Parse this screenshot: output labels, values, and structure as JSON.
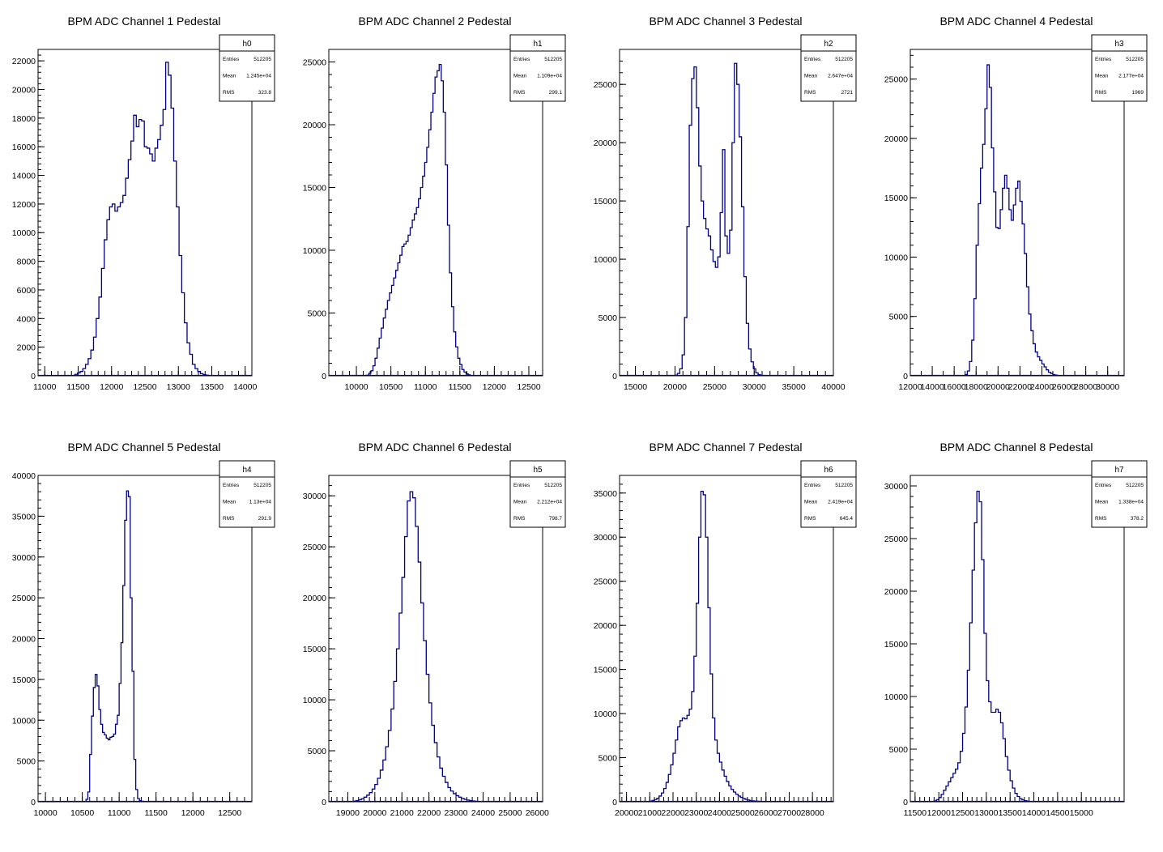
{
  "chart_data": [
    {
      "type": "histogram",
      "title": "BPM ADC Channel 1 Pedestal",
      "stats": {
        "name": "h0",
        "entries": "512205",
        "mean": "1.245e+04",
        "rms": "323.8"
      },
      "xlim": [
        10900,
        14100
      ],
      "ylim": [
        0,
        22800
      ],
      "xticks": [
        11000,
        11500,
        12000,
        12500,
        13000,
        13500,
        14000
      ],
      "xminor": 100,
      "yticks": [
        0,
        2000,
        4000,
        6000,
        8000,
        10000,
        12000,
        14000,
        16000,
        18000,
        20000,
        22000
      ],
      "yminor": 400,
      "x0": 11450,
      "bin_width": 40,
      "values": [
        100,
        200,
        300,
        500,
        800,
        1200,
        1800,
        2700,
        4000,
        5500,
        7500,
        9500,
        10900,
        11800,
        12000,
        11500,
        11800,
        12100,
        12600,
        13800,
        15100,
        16400,
        18200,
        17400,
        17900,
        17800,
        16000,
        15900,
        15500,
        15000,
        15900,
        16500,
        17500,
        18600,
        21900,
        21000,
        18700,
        15000,
        11800,
        8400,
        5800,
        3700,
        2300,
        1500,
        800,
        500,
        300,
        150,
        80,
        40
      ]
    },
    {
      "type": "histogram",
      "title": "BPM ADC Channel 2 Pedestal",
      "stats": {
        "name": "h1",
        "entries": "512205",
        "mean": "1.109e+04",
        "rms": "299.1"
      },
      "xlim": [
        9600,
        12700
      ],
      "ylim": [
        0,
        26000
      ],
      "xticks": [
        10000,
        10500,
        11000,
        11500,
        12000,
        12500
      ],
      "xminor": 100,
      "yticks": [
        0,
        5000,
        10000,
        15000,
        20000,
        25000
      ],
      "yminor": 1000,
      "x0": 10150,
      "bin_width": 30,
      "values": [
        50,
        200,
        400,
        800,
        1400,
        2200,
        3000,
        3800,
        4600,
        5300,
        6000,
        6600,
        7200,
        7800,
        8400,
        9000,
        9600,
        10300,
        10500,
        10700,
        11200,
        11800,
        12400,
        12900,
        13400,
        14100,
        15000,
        15900,
        17000,
        18200,
        19600,
        21000,
        22500,
        23800,
        24300,
        24800,
        23500,
        21000,
        16800,
        12000,
        8200,
        5500,
        3500,
        2300,
        1400,
        900,
        500,
        300,
        150,
        80
      ]
    },
    {
      "type": "histogram",
      "title": "BPM ADC Channel 3 Pedestal",
      "stats": {
        "name": "h2",
        "entries": "512205",
        "mean": "2.647e+04",
        "rms": "2721"
      },
      "xlim": [
        13000,
        40000
      ],
      "ylim": [
        0,
        28000
      ],
      "xticks": [
        15000,
        20000,
        25000,
        30000,
        35000,
        40000
      ],
      "xminor": 1000,
      "yticks": [
        0,
        5000,
        10000,
        15000,
        20000,
        25000
      ],
      "yminor": 1000,
      "x0": 20000,
      "bin_width": 300,
      "values": [
        50,
        200,
        600,
        1800,
        5000,
        12800,
        21500,
        25500,
        26500,
        23000,
        18000,
        15000,
        13500,
        12600,
        12000,
        10800,
        9800,
        9300,
        10200,
        14000,
        19400,
        12000,
        10500,
        12500,
        20000,
        26800,
        25000,
        20500,
        14500,
        8500,
        4500,
        2300,
        1200,
        600,
        250,
        100,
        40
      ]
    },
    {
      "type": "histogram",
      "title": "BPM ADC Channel 4 Pedestal",
      "stats": {
        "name": "h3",
        "entries": "512205",
        "mean": "2.177e+04",
        "rms": "1969"
      },
      "xlim": [
        12000,
        31500
      ],
      "ylim": [
        0,
        27500
      ],
      "xticks": [
        12000,
        14000,
        16000,
        18000,
        20000,
        22000,
        24000,
        26000,
        28000,
        30000
      ],
      "xminor": 1000,
      "yticks": [
        0,
        5000,
        10000,
        15000,
        20000,
        25000
      ],
      "yminor": 1000,
      "x0": 17000,
      "bin_width": 200,
      "values": [
        100,
        400,
        1200,
        3000,
        6500,
        11000,
        14500,
        17500,
        19500,
        22500,
        26200,
        24300,
        19200,
        15500,
        12500,
        12400,
        14000,
        15800,
        16900,
        15800,
        14000,
        13100,
        14400,
        15800,
        16400,
        14700,
        12800,
        10300,
        7500,
        5200,
        3800,
        2700,
        2000,
        1600,
        1300,
        1000,
        750,
        500,
        300,
        200,
        100,
        60
      ]
    },
    {
      "type": "histogram",
      "title": "BPM ADC Channel 5 Pedestal",
      "stats": {
        "name": "h4",
        "entries": "512205",
        "mean": "1.13e+04",
        "rms": "291.9"
      },
      "xlim": [
        9900,
        12800
      ],
      "ylim": [
        0,
        40000
      ],
      "xticks": [
        10000,
        10500,
        11000,
        11500,
        12000,
        12500
      ],
      "xminor": 100,
      "yticks": [
        0,
        5000,
        10000,
        15000,
        20000,
        25000,
        30000,
        35000,
        40000
      ],
      "yminor": 1000,
      "x0": 10550,
      "bin_width": 25,
      "values": [
        300,
        1200,
        5800,
        10500,
        14000,
        15600,
        14200,
        11300,
        9500,
        8500,
        8200,
        7800,
        7600,
        7900,
        8000,
        8300,
        9500,
        10600,
        14500,
        19500,
        26500,
        34500,
        38100,
        37400,
        25000,
        16000,
        5200,
        1500,
        400,
        150,
        60
      ]
    },
    {
      "type": "histogram",
      "title": "BPM ADC Channel 6 Pedestal",
      "stats": {
        "name": "h5",
        "entries": "512205",
        "mean": "2.212e+04",
        "rms": "798.7"
      },
      "xlim": [
        18300,
        26200
      ],
      "ylim": [
        0,
        32000
      ],
      "xticks": [
        19000,
        20000,
        21000,
        22000,
        23000,
        24000,
        25000,
        26000
      ],
      "xminor": 200,
      "yticks": [
        0,
        5000,
        10000,
        15000,
        20000,
        25000,
        30000
      ],
      "yminor": 1000,
      "x0": 19200,
      "bin_width": 100,
      "values": [
        60,
        120,
        200,
        300,
        450,
        650,
        900,
        1250,
        1700,
        2300,
        3100,
        4100,
        5400,
        7000,
        9100,
        11800,
        15000,
        18500,
        22000,
        26000,
        29500,
        30400,
        29800,
        27000,
        23500,
        19500,
        15800,
        12500,
        9700,
        7500,
        5800,
        4400,
        3300,
        2500,
        1900,
        1400,
        1050,
        800,
        600,
        450,
        330,
        240,
        170,
        120,
        80,
        50,
        30
      ]
    },
    {
      "type": "histogram",
      "title": "BPM ADC Channel 7 Pedestal",
      "stats": {
        "name": "h6",
        "entries": "512205",
        "mean": "2.419e+04",
        "rms": "645.4"
      },
      "xlim": [
        19700,
        28900
      ],
      "ylim": [
        0,
        37000
      ],
      "xticks": [
        20000,
        21000,
        22000,
        23000,
        24000,
        25000,
        26000,
        27000,
        28000
      ],
      "xminor": 200,
      "yticks": [
        0,
        5000,
        10000,
        15000,
        20000,
        25000,
        30000,
        35000
      ],
      "yminor": 1000,
      "x0": 21000,
      "bin_width": 100,
      "values": [
        80,
        150,
        250,
        400,
        650,
        1000,
        1500,
        2200,
        3100,
        4200,
        5500,
        7000,
        8500,
        9200,
        9500,
        9400,
        9800,
        10500,
        12500,
        16500,
        22500,
        30000,
        35200,
        34800,
        30000,
        22000,
        14500,
        9500,
        7000,
        5500,
        4500,
        3600,
        2900,
        2300,
        1800,
        1400,
        1100,
        850,
        650,
        500,
        380,
        280,
        200,
        140,
        100,
        70,
        50,
        30
      ]
    },
    {
      "type": "histogram",
      "title": "BPM ADC Channel 8 Pedestal",
      "stats": {
        "name": "h7",
        "entries": "512205",
        "mean": "1.338e+04",
        "rms": "378.2"
      },
      "xlim": [
        11400,
        15900
      ],
      "ylim": [
        0,
        31000
      ],
      "xticks": [
        11500,
        12000,
        12500,
        13000,
        13500,
        14000,
        14500,
        15000
      ],
      "xminor": 100,
      "yticks": [
        0,
        5000,
        10000,
        15000,
        20000,
        25000,
        30000
      ],
      "yminor": 1000,
      "x0": 11900,
      "bin_width": 50,
      "values": [
        80,
        200,
        400,
        700,
        1100,
        1500,
        1900,
        2300,
        2700,
        3100,
        3700,
        4800,
        6500,
        9000,
        12500,
        17000,
        22000,
        26500,
        29500,
        28500,
        23000,
        16000,
        11500,
        9500,
        8500,
        8500,
        8800,
        8500,
        7500,
        6000,
        4300,
        3000,
        2000,
        1300,
        800,
        500,
        300,
        180,
        100,
        60,
        30
      ]
    }
  ]
}
